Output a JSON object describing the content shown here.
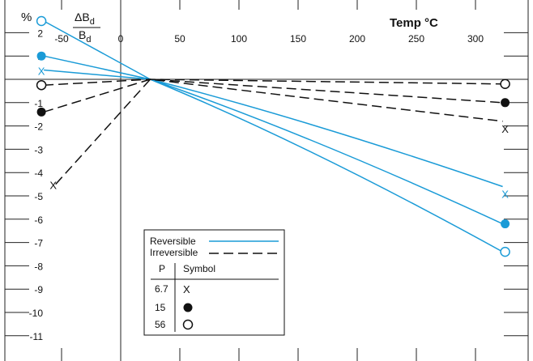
{
  "chart_data": {
    "type": "line",
    "title": "",
    "y_axis": {
      "label": "%",
      "fraction_numerator": "ΔB",
      "fraction_denominator": "B",
      "subscript": "d",
      "ylim": [
        -11.5,
        2.5
      ],
      "ticks": [
        2,
        1,
        0,
        -1,
        -2,
        -3,
        -4,
        -5,
        -6,
        -7,
        -8,
        -9,
        -10,
        -11
      ],
      "tick_labels": [
        "2",
        "1",
        "",
        "-1",
        "-2",
        "-3",
        "-4",
        "-5",
        "-6",
        "-7",
        "-8",
        "-9",
        "-10",
        "-11"
      ]
    },
    "x_axis": {
      "label": "Temp °C",
      "xlim": [
        -80,
        330
      ],
      "ticks": [
        -50,
        0,
        50,
        100,
        150,
        200,
        250,
        300
      ],
      "tick_labels": [
        "-50",
        "0",
        "50",
        "100",
        "150",
        "200",
        "250",
        "300"
      ]
    },
    "grid": false,
    "colors": {
      "reversible": "#1a9bd7",
      "irreversible": "#111111",
      "axis": "#222222"
    },
    "series": [
      {
        "name": "Reversible",
        "style": "solid",
        "p": "6.7",
        "symbol": "x",
        "points": [
          [
            -65,
            0.4
          ],
          [
            25,
            0
          ],
          [
            323,
            -4.6
          ]
        ],
        "label_marker": "X"
      },
      {
        "name": "Reversible",
        "style": "solid",
        "p": "15",
        "symbol": "filled-circle",
        "points": [
          [
            -65,
            1.0
          ],
          [
            25,
            0
          ],
          [
            323,
            -6.2
          ]
        ]
      },
      {
        "name": "Reversible",
        "style": "solid",
        "p": "56",
        "symbol": "open-circle",
        "points": [
          [
            -65,
            2.5
          ],
          [
            25,
            0
          ],
          [
            323,
            -7.4
          ]
        ]
      },
      {
        "name": "Irreversible",
        "style": "dashed",
        "p": "6.7",
        "symbol": "x",
        "points": [
          [
            -55,
            -4.5
          ],
          [
            25,
            0
          ],
          [
            323,
            -1.8
          ]
        ],
        "label_marker": "X"
      },
      {
        "name": "Irreversible",
        "style": "dashed",
        "p": "15",
        "symbol": "filled-circle",
        "points": [
          [
            -65,
            -1.4
          ],
          [
            25,
            0
          ],
          [
            323,
            -1.0
          ]
        ]
      },
      {
        "name": "Irreversible",
        "style": "dashed",
        "p": "56",
        "symbol": "open-circle",
        "points": [
          [
            -65,
            -0.25
          ],
          [
            25,
            0
          ],
          [
            323,
            -0.2
          ]
        ]
      }
    ],
    "legend": {
      "placement": "bottom-left",
      "line_items": [
        {
          "label": "Reversible",
          "style": "solid"
        },
        {
          "label": "Irreversible",
          "style": "dashed"
        }
      ],
      "table_headers": [
        "P",
        "Symbol"
      ],
      "table_rows": [
        {
          "p": "6.7",
          "symbol": "x",
          "symbol_text": "X"
        },
        {
          "p": "15",
          "symbol": "filled-circle"
        },
        {
          "p": "56",
          "symbol": "open-circle"
        }
      ]
    }
  }
}
